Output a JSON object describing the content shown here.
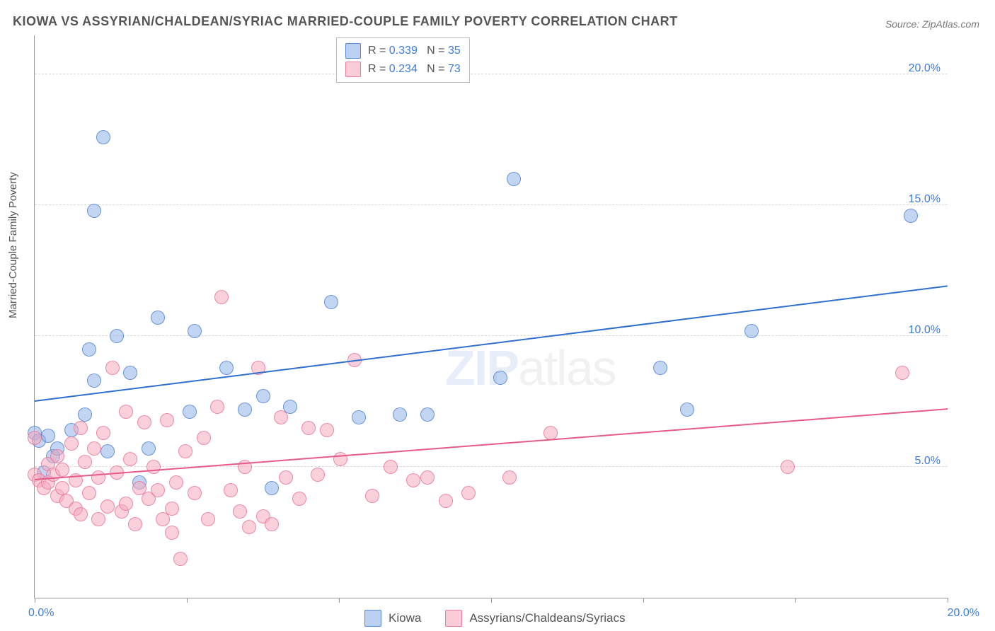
{
  "chart": {
    "title": "KIOWA VS ASSYRIAN/CHALDEAN/SYRIAC MARRIED-COUPLE FAMILY POVERTY CORRELATION CHART",
    "source": "Source: ZipAtlas.com",
    "ylabel": "Married-Couple Family Poverty",
    "watermark_bold": "ZIP",
    "watermark_rest": "atlas",
    "background_color": "#ffffff",
    "grid_color": "#d8d8d8",
    "axis_color": "#999999",
    "label_color": "#555555",
    "tick_label_color": "#3b7dd8",
    "xlim": [
      0,
      20
    ],
    "ylim": [
      0,
      21.5
    ],
    "xtick_positions": [
      0,
      3.33,
      6.67,
      10.0,
      13.33,
      16.67,
      20.0
    ],
    "xtick_labels": {
      "0": "0.0%",
      "20": "20.0%"
    },
    "ytick_positions": [
      5,
      10,
      15,
      20
    ],
    "ytick_labels": [
      "5.0%",
      "10.0%",
      "15.0%",
      "20.0%"
    ],
    "marker_radius": 9,
    "series": [
      {
        "name": "Kiowa",
        "color_fill": "rgba(144,179,232,0.55)",
        "color_stroke": "rgba(80,130,210,0.8)",
        "R": "0.339",
        "N": "35",
        "trend": {
          "x0": 0,
          "y0": 7.5,
          "x1": 20,
          "y1": 11.9,
          "color": "#2f6fd0",
          "width": 2
        },
        "points": [
          [
            0.0,
            6.3
          ],
          [
            0.1,
            6.0
          ],
          [
            0.2,
            4.8
          ],
          [
            0.3,
            6.2
          ],
          [
            0.4,
            5.4
          ],
          [
            0.5,
            5.7
          ],
          [
            0.8,
            6.4
          ],
          [
            1.1,
            7.0
          ],
          [
            1.2,
            9.5
          ],
          [
            1.3,
            14.8
          ],
          [
            1.3,
            8.3
          ],
          [
            1.5,
            17.6
          ],
          [
            1.6,
            5.6
          ],
          [
            1.8,
            10.0
          ],
          [
            2.1,
            8.6
          ],
          [
            2.3,
            4.4
          ],
          [
            2.5,
            5.7
          ],
          [
            2.7,
            10.7
          ],
          [
            3.4,
            7.1
          ],
          [
            3.5,
            10.2
          ],
          [
            4.2,
            8.8
          ],
          [
            4.6,
            7.2
          ],
          [
            5.0,
            7.7
          ],
          [
            5.2,
            4.2
          ],
          [
            5.6,
            7.3
          ],
          [
            6.5,
            11.3
          ],
          [
            7.1,
            6.9
          ],
          [
            8.0,
            7.0
          ],
          [
            8.6,
            7.0
          ],
          [
            10.2,
            8.4
          ],
          [
            10.5,
            16.0
          ],
          [
            13.7,
            8.8
          ],
          [
            14.3,
            7.2
          ],
          [
            15.7,
            10.2
          ],
          [
            19.2,
            14.6
          ]
        ]
      },
      {
        "name": "Assyrians/Chaldeans/Syriacs",
        "color_fill": "rgba(245,170,190,0.55)",
        "color_stroke": "rgba(230,110,150,0.75)",
        "R": "0.234",
        "N": "73",
        "trend": {
          "x0": 0,
          "y0": 4.5,
          "x1": 20,
          "y1": 7.2,
          "color": "#e65a8a",
          "width": 2
        },
        "points": [
          [
            0.0,
            6.1
          ],
          [
            0.0,
            4.7
          ],
          [
            0.1,
            4.5
          ],
          [
            0.2,
            4.2
          ],
          [
            0.3,
            5.1
          ],
          [
            0.3,
            4.4
          ],
          [
            0.4,
            4.7
          ],
          [
            0.5,
            3.9
          ],
          [
            0.5,
            5.4
          ],
          [
            0.6,
            4.9
          ],
          [
            0.6,
            4.2
          ],
          [
            0.7,
            3.7
          ],
          [
            0.8,
            5.9
          ],
          [
            0.9,
            3.4
          ],
          [
            0.9,
            4.5
          ],
          [
            1.0,
            6.5
          ],
          [
            1.0,
            3.2
          ],
          [
            1.1,
            5.2
          ],
          [
            1.2,
            4.0
          ],
          [
            1.3,
            5.7
          ],
          [
            1.4,
            3.0
          ],
          [
            1.4,
            4.6
          ],
          [
            1.5,
            6.3
          ],
          [
            1.6,
            3.5
          ],
          [
            1.7,
            8.8
          ],
          [
            1.8,
            4.8
          ],
          [
            1.9,
            3.3
          ],
          [
            2.0,
            7.1
          ],
          [
            2.0,
            3.6
          ],
          [
            2.1,
            5.3
          ],
          [
            2.2,
            2.8
          ],
          [
            2.3,
            4.2
          ],
          [
            2.4,
            6.7
          ],
          [
            2.5,
            3.8
          ],
          [
            2.6,
            5.0
          ],
          [
            2.7,
            4.1
          ],
          [
            2.8,
            3.0
          ],
          [
            2.9,
            6.8
          ],
          [
            3.0,
            2.5
          ],
          [
            3.0,
            3.4
          ],
          [
            3.1,
            4.4
          ],
          [
            3.2,
            1.5
          ],
          [
            3.3,
            5.6
          ],
          [
            3.5,
            4.0
          ],
          [
            3.7,
            6.1
          ],
          [
            3.8,
            3.0
          ],
          [
            4.0,
            7.3
          ],
          [
            4.1,
            11.5
          ],
          [
            4.3,
            4.1
          ],
          [
            4.5,
            3.3
          ],
          [
            4.6,
            5.0
          ],
          [
            4.7,
            2.7
          ],
          [
            4.9,
            8.8
          ],
          [
            5.0,
            3.1
          ],
          [
            5.2,
            2.8
          ],
          [
            5.4,
            6.9
          ],
          [
            5.5,
            4.6
          ],
          [
            5.8,
            3.8
          ],
          [
            6.0,
            6.5
          ],
          [
            6.2,
            4.7
          ],
          [
            6.4,
            6.4
          ],
          [
            6.7,
            5.3
          ],
          [
            7.0,
            9.1
          ],
          [
            7.4,
            3.9
          ],
          [
            7.8,
            5.0
          ],
          [
            8.3,
            4.5
          ],
          [
            8.6,
            4.6
          ],
          [
            9.0,
            3.7
          ],
          [
            9.5,
            4.0
          ],
          [
            10.4,
            4.6
          ],
          [
            11.3,
            6.3
          ],
          [
            16.5,
            5.0
          ],
          [
            19.0,
            8.6
          ]
        ]
      }
    ]
  }
}
